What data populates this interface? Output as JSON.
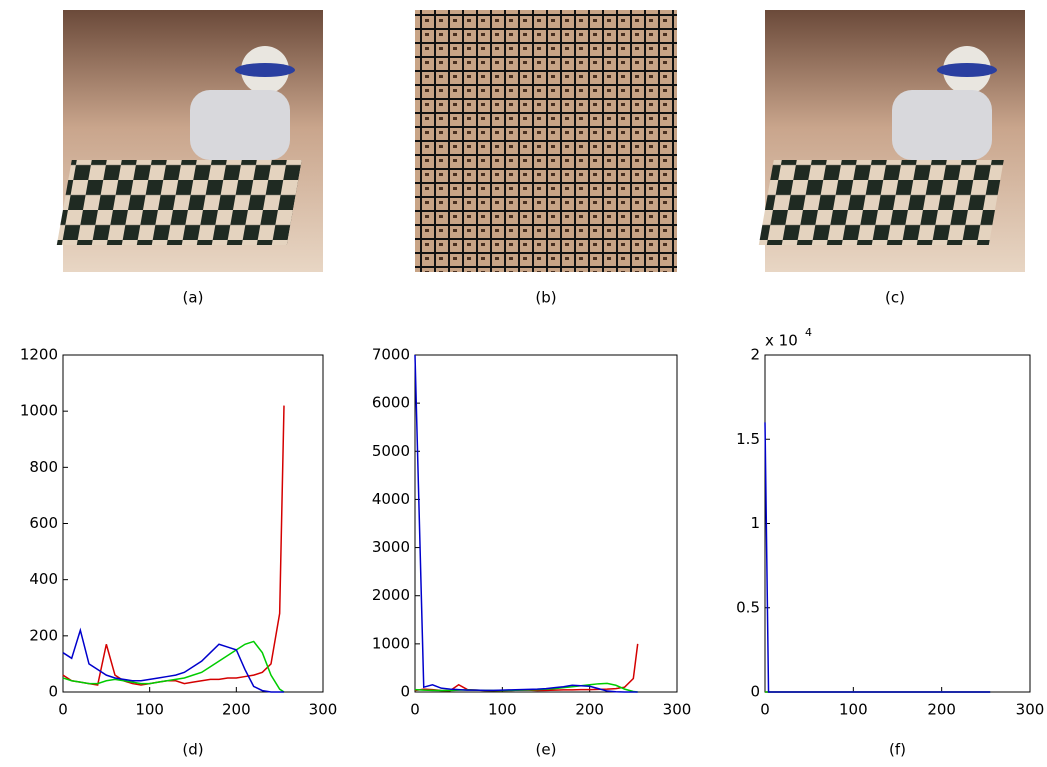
{
  "images": [
    {
      "caption": "(a)"
    },
    {
      "caption": "(b)"
    },
    {
      "caption": "(c)"
    }
  ],
  "chart_data": [
    {
      "type": "line",
      "caption": "(d)",
      "x": [
        0,
        10,
        20,
        30,
        40,
        50,
        60,
        70,
        80,
        90,
        100,
        110,
        120,
        130,
        140,
        150,
        160,
        170,
        180,
        190,
        200,
        210,
        220,
        230,
        240,
        250,
        255
      ],
      "xlim": [
        0,
        300
      ],
      "xticks": [
        0,
        100,
        200,
        300
      ],
      "ylim": [
        0,
        1200
      ],
      "yticks": [
        0,
        200,
        400,
        600,
        800,
        1000,
        1200
      ],
      "series": [
        {
          "color": "#d40000",
          "values": [
            60,
            40,
            35,
            30,
            25,
            170,
            60,
            40,
            30,
            25,
            30,
            35,
            40,
            40,
            30,
            35,
            40,
            45,
            45,
            50,
            50,
            55,
            60,
            70,
            100,
            280,
            1020
          ]
        },
        {
          "color": "#00cc00",
          "values": [
            50,
            40,
            35,
            30,
            30,
            40,
            45,
            40,
            35,
            30,
            30,
            35,
            40,
            45,
            50,
            60,
            70,
            90,
            110,
            130,
            150,
            170,
            180,
            140,
            60,
            10,
            0
          ]
        },
        {
          "color": "#0000cc",
          "values": [
            140,
            120,
            220,
            100,
            80,
            60,
            50,
            45,
            40,
            40,
            45,
            50,
            55,
            60,
            70,
            90,
            110,
            140,
            170,
            160,
            150,
            80,
            20,
            5,
            0,
            0,
            0
          ]
        }
      ]
    },
    {
      "type": "line",
      "caption": "(e)",
      "x": [
        0,
        10,
        20,
        30,
        40,
        50,
        60,
        70,
        80,
        90,
        100,
        110,
        120,
        130,
        140,
        150,
        160,
        170,
        180,
        190,
        200,
        210,
        220,
        230,
        240,
        250,
        255
      ],
      "xlim": [
        0,
        300
      ],
      "xticks": [
        0,
        100,
        200,
        300
      ],
      "ylim": [
        0,
        7000
      ],
      "yticks": [
        0,
        1000,
        2000,
        3000,
        4000,
        5000,
        6000,
        7000
      ],
      "series": [
        {
          "color": "#d40000",
          "values": [
            30,
            60,
            50,
            30,
            25,
            150,
            50,
            40,
            30,
            25,
            30,
            35,
            40,
            40,
            30,
            35,
            40,
            45,
            45,
            50,
            50,
            55,
            60,
            70,
            100,
            280,
            1000
          ]
        },
        {
          "color": "#00cc00",
          "values": [
            50,
            40,
            35,
            30,
            30,
            40,
            45,
            40,
            35,
            30,
            30,
            35,
            40,
            45,
            50,
            60,
            70,
            90,
            110,
            130,
            150,
            170,
            180,
            140,
            60,
            10,
            0
          ]
        },
        {
          "color": "#0000cc",
          "values": [
            7000,
            100,
            150,
            80,
            60,
            50,
            40,
            40,
            35,
            35,
            40,
            45,
            50,
            55,
            60,
            70,
            90,
            110,
            140,
            130,
            120,
            70,
            20,
            5,
            0,
            0,
            0
          ]
        }
      ]
    },
    {
      "type": "line",
      "caption": "(f)",
      "x": [
        0,
        2,
        4,
        100,
        200,
        255
      ],
      "xlim": [
        0,
        300
      ],
      "xticks": [
        0,
        100,
        200,
        300
      ],
      "ylim": [
        0,
        20000
      ],
      "yticks": [
        {
          "value": 0,
          "label": "0"
        },
        {
          "value": 5000,
          "label": "0.5"
        },
        {
          "value": 10000,
          "label": "1"
        },
        {
          "value": 15000,
          "label": "1.5"
        },
        {
          "value": 20000,
          "label": "2"
        }
      ],
      "scale_base": "x 10",
      "scale_exponent": "4",
      "series": [
        {
          "color": "#d40000",
          "values": [
            0,
            0,
            0,
            0,
            0,
            0
          ]
        },
        {
          "color": "#00cc00",
          "values": [
            0,
            0,
            0,
            0,
            0,
            0
          ]
        },
        {
          "color": "#0000cc",
          "values": [
            16000,
            8000,
            0,
            0,
            0,
            0
          ]
        }
      ]
    }
  ]
}
